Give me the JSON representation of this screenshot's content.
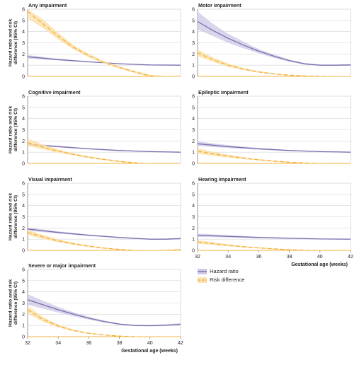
{
  "figure": {
    "y_axis_label_line1": "Hazard ratio and risk",
    "y_axis_label_line2": "difference (95% CI)",
    "x_axis_label": "Gestational age (weeks)"
  },
  "legend": {
    "items": [
      {
        "label": "Hazard ratio",
        "color": "#7a6fb0",
        "band": "#cfcae6",
        "style": "solid"
      },
      {
        "label": "Risk difference",
        "color": "#f2b13a",
        "band": "#fbe3b4",
        "style": "dashed"
      }
    ]
  },
  "colors": {
    "hr_line": "#7a6fb0",
    "hr_band": "#d3cee8",
    "rd_line": "#f2b13a",
    "rd_band": "#fbe2ae",
    "grid": "#d4d4d4",
    "axis": "#8a8a8a"
  },
  "chart_data": [
    {
      "type": "line",
      "title": "Any impairment",
      "xlabel": "",
      "ylabel": "Hazard ratio and risk difference (95% CI)",
      "xlim": [
        32,
        42
      ],
      "ylim": [
        0,
        6
      ],
      "x_ticks": [
        32,
        34,
        36,
        38,
        40,
        42
      ],
      "y_ticks": [
        0,
        1,
        2,
        3,
        4,
        5,
        6
      ],
      "grid": true,
      "x_ticks_shown": false,
      "series": [
        {
          "name": "Hazard ratio",
          "style": "solid",
          "x": [
            32,
            34,
            36,
            38,
            40,
            42
          ],
          "values": [
            1.75,
            1.5,
            1.3,
            1.13,
            1.02,
            1.0
          ],
          "lower": [
            1.6,
            1.42,
            1.25,
            1.1,
            1.0,
            0.98
          ],
          "upper": [
            1.9,
            1.58,
            1.35,
            1.16,
            1.04,
            1.02
          ]
        },
        {
          "name": "Risk difference",
          "style": "dashed",
          "x": [
            32,
            33,
            34,
            35,
            36,
            37,
            38,
            39,
            40,
            41,
            42
          ],
          "values": [
            5.8,
            4.7,
            3.6,
            2.6,
            1.85,
            1.25,
            0.8,
            0.4,
            0.05,
            -0.05,
            -0.05
          ],
          "lower": [
            5.2,
            4.3,
            3.3,
            2.4,
            1.7,
            1.15,
            0.7,
            0.3,
            -0.05,
            -0.15,
            -0.25
          ],
          "upper": [
            6.0,
            5.1,
            3.9,
            2.8,
            2.0,
            1.35,
            0.9,
            0.5,
            0.15,
            0.05,
            0.1
          ]
        }
      ]
    },
    {
      "type": "line",
      "title": "Motor impairment",
      "xlabel": "",
      "ylabel": "",
      "xlim": [
        32,
        42
      ],
      "ylim": [
        0,
        6
      ],
      "x_ticks": [
        32,
        34,
        36,
        38,
        40,
        42
      ],
      "y_ticks": [
        0,
        1,
        2,
        3,
        4,
        5,
        6
      ],
      "grid": true,
      "x_ticks_shown": false,
      "series": [
        {
          "name": "Hazard ratio",
          "style": "solid",
          "x": [
            32,
            33,
            34,
            35,
            36,
            37,
            38,
            39,
            40,
            41,
            42
          ],
          "values": [
            4.9,
            4.1,
            3.4,
            2.8,
            2.25,
            1.8,
            1.4,
            1.12,
            1.0,
            1.0,
            1.02
          ],
          "lower": [
            4.2,
            3.6,
            3.0,
            2.5,
            2.05,
            1.65,
            1.3,
            1.05,
            0.95,
            0.95,
            0.95
          ],
          "upper": [
            5.8,
            4.7,
            3.8,
            3.1,
            2.45,
            1.95,
            1.5,
            1.2,
            1.05,
            1.05,
            1.1
          ]
        },
        {
          "name": "Risk difference",
          "style": "dashed",
          "x": [
            32,
            33,
            34,
            35,
            36,
            37,
            38,
            39,
            40,
            41,
            42
          ],
          "values": [
            2.1,
            1.5,
            1.0,
            0.65,
            0.4,
            0.22,
            0.1,
            0.04,
            0.0,
            -0.02,
            -0.02
          ],
          "lower": [
            1.8,
            1.3,
            0.85,
            0.55,
            0.33,
            0.17,
            0.07,
            0.01,
            -0.04,
            -0.06,
            -0.08
          ],
          "upper": [
            2.4,
            1.7,
            1.15,
            0.75,
            0.47,
            0.27,
            0.13,
            0.07,
            0.04,
            0.02,
            0.04
          ]
        }
      ]
    },
    {
      "type": "line",
      "title": "Cognitive impairment",
      "xlabel": "",
      "ylabel": "Hazard ratio and risk difference (95% CI)",
      "xlim": [
        32,
        42
      ],
      "ylim": [
        0,
        6
      ],
      "x_ticks": [
        32,
        34,
        36,
        38,
        40,
        42
      ],
      "y_ticks": [
        0,
        1,
        2,
        3,
        4,
        5,
        6
      ],
      "grid": true,
      "x_ticks_shown": false,
      "series": [
        {
          "name": "Hazard ratio",
          "style": "solid",
          "x": [
            32,
            34,
            36,
            38,
            40,
            42
          ],
          "values": [
            1.7,
            1.5,
            1.3,
            1.15,
            1.05,
            1.0
          ],
          "lower": [
            1.6,
            1.43,
            1.25,
            1.1,
            1.02,
            0.97
          ],
          "upper": [
            1.8,
            1.57,
            1.35,
            1.2,
            1.08,
            1.03
          ]
        },
        {
          "name": "Risk difference",
          "style": "dashed",
          "x": [
            32,
            33,
            34,
            35,
            36,
            37,
            38,
            39,
            40,
            41,
            42
          ],
          "values": [
            1.85,
            1.45,
            1.1,
            0.8,
            0.55,
            0.35,
            0.18,
            0.05,
            -0.05,
            -0.1,
            -0.1
          ],
          "lower": [
            1.55,
            1.25,
            0.95,
            0.7,
            0.47,
            0.28,
            0.12,
            0.0,
            -0.1,
            -0.17,
            -0.2
          ],
          "upper": [
            2.2,
            1.7,
            1.25,
            0.9,
            0.63,
            0.42,
            0.24,
            0.1,
            0.0,
            -0.03,
            0.0
          ]
        }
      ]
    },
    {
      "type": "line",
      "title": "Epileptic impairment",
      "xlabel": "",
      "ylabel": "",
      "xlim": [
        32,
        42
      ],
      "ylim": [
        0,
        6
      ],
      "x_ticks": [
        32,
        34,
        36,
        38,
        40,
        42
      ],
      "y_ticks": [
        0,
        1,
        2,
        3,
        4,
        5,
        6
      ],
      "grid": true,
      "x_ticks_shown": false,
      "series": [
        {
          "name": "Hazard ratio",
          "style": "solid",
          "x": [
            32,
            34,
            36,
            38,
            40,
            42
          ],
          "values": [
            1.75,
            1.5,
            1.3,
            1.15,
            1.05,
            1.0
          ],
          "lower": [
            1.55,
            1.38,
            1.22,
            1.1,
            1.02,
            0.97
          ],
          "upper": [
            1.95,
            1.62,
            1.38,
            1.2,
            1.08,
            1.03
          ]
        },
        {
          "name": "Risk difference",
          "style": "dashed",
          "x": [
            32,
            33,
            34,
            35,
            36,
            37,
            38,
            39,
            40,
            41,
            42
          ],
          "values": [
            1.1,
            0.85,
            0.65,
            0.47,
            0.32,
            0.2,
            0.1,
            0.03,
            -0.02,
            -0.05,
            -0.05
          ],
          "lower": [
            0.85,
            0.67,
            0.52,
            0.38,
            0.26,
            0.15,
            0.06,
            0.0,
            -0.05,
            -0.09,
            -0.1
          ],
          "upper": [
            1.35,
            1.03,
            0.78,
            0.56,
            0.38,
            0.25,
            0.14,
            0.06,
            0.01,
            -0.01,
            0.0
          ]
        }
      ]
    },
    {
      "type": "line",
      "title": "Visual impairment",
      "xlabel": "",
      "ylabel": "Hazard ratio and risk difference (95% CI)",
      "xlim": [
        32,
        42
      ],
      "ylim": [
        0,
        6
      ],
      "x_ticks": [
        32,
        34,
        36,
        38,
        40,
        42
      ],
      "y_ticks": [
        0,
        1,
        2,
        3,
        4,
        5,
        6
      ],
      "grid": true,
      "x_ticks_shown": false,
      "series": [
        {
          "name": "Hazard ratio",
          "style": "solid",
          "x": [
            32,
            34,
            36,
            38,
            40,
            41,
            42
          ],
          "values": [
            1.9,
            1.6,
            1.35,
            1.15,
            1.0,
            1.0,
            1.05
          ],
          "lower": [
            1.75,
            1.5,
            1.28,
            1.1,
            0.96,
            0.95,
            0.97
          ],
          "upper": [
            2.05,
            1.7,
            1.42,
            1.2,
            1.04,
            1.05,
            1.13
          ]
        },
        {
          "name": "Risk difference",
          "style": "dashed",
          "x": [
            32,
            33,
            34,
            35,
            36,
            37,
            38,
            39,
            40,
            41,
            42
          ],
          "values": [
            1.6,
            1.2,
            0.85,
            0.58,
            0.37,
            0.2,
            0.08,
            0.0,
            -0.03,
            0.0,
            0.05
          ],
          "lower": [
            1.35,
            1.02,
            0.72,
            0.49,
            0.3,
            0.15,
            0.04,
            -0.03,
            -0.07,
            -0.05,
            -0.03
          ],
          "upper": [
            1.85,
            1.38,
            0.98,
            0.67,
            0.44,
            0.25,
            0.12,
            0.03,
            0.01,
            0.05,
            0.13
          ]
        }
      ]
    },
    {
      "type": "line",
      "title": "Hearing impairment",
      "xlabel": "Gestational age (weeks)",
      "ylabel": "",
      "xlim": [
        32,
        42
      ],
      "ylim": [
        0,
        6
      ],
      "x_ticks": [
        32,
        34,
        36,
        38,
        40,
        42
      ],
      "y_ticks": [
        0,
        1,
        2,
        3,
        4,
        5,
        6
      ],
      "grid": true,
      "x_ticks_shown": true,
      "series": [
        {
          "name": "Hazard ratio",
          "style": "solid",
          "x": [
            32,
            34,
            36,
            38,
            40,
            42
          ],
          "values": [
            1.35,
            1.25,
            1.15,
            1.08,
            1.02,
            1.0
          ],
          "lower": [
            1.2,
            1.15,
            1.08,
            1.03,
            0.99,
            0.97
          ],
          "upper": [
            1.5,
            1.35,
            1.22,
            1.13,
            1.05,
            1.03
          ]
        },
        {
          "name": "Risk difference",
          "style": "dashed",
          "x": [
            32,
            33,
            34,
            35,
            36,
            37,
            38,
            39,
            40,
            41,
            42
          ],
          "values": [
            0.75,
            0.6,
            0.45,
            0.33,
            0.22,
            0.13,
            0.06,
            0.01,
            -0.02,
            -0.04,
            -0.05
          ],
          "lower": [
            0.6,
            0.48,
            0.36,
            0.26,
            0.17,
            0.09,
            0.03,
            -0.02,
            -0.05,
            -0.07,
            -0.09
          ],
          "upper": [
            0.9,
            0.72,
            0.54,
            0.4,
            0.27,
            0.17,
            0.09,
            0.04,
            0.01,
            -0.01,
            -0.01
          ]
        }
      ]
    },
    {
      "type": "line",
      "title": "Severe or major impairment",
      "xlabel": "Gestational age (weeks)",
      "ylabel": "Hazard ratio and risk difference (95% CI)",
      "xlim": [
        32,
        42
      ],
      "ylim": [
        0,
        6
      ],
      "x_ticks": [
        32,
        34,
        36,
        38,
        40,
        42
      ],
      "y_ticks": [
        0,
        1,
        2,
        3,
        4,
        5,
        6
      ],
      "grid": true,
      "x_ticks_shown": true,
      "series": [
        {
          "name": "Hazard ratio",
          "style": "solid",
          "x": [
            32,
            33,
            34,
            35,
            36,
            37,
            38,
            39,
            40,
            41,
            42
          ],
          "values": [
            3.3,
            2.85,
            2.4,
            2.0,
            1.65,
            1.35,
            1.12,
            1.0,
            0.98,
            1.02,
            1.1
          ],
          "lower": [
            2.85,
            2.5,
            2.15,
            1.82,
            1.52,
            1.26,
            1.06,
            0.95,
            0.92,
            0.94,
            0.98
          ],
          "upper": [
            3.8,
            3.2,
            2.65,
            2.18,
            1.78,
            1.44,
            1.18,
            1.05,
            1.04,
            1.1,
            1.22
          ]
        },
        {
          "name": "Risk difference",
          "style": "dashed",
          "x": [
            32,
            33,
            34,
            35,
            36,
            37,
            38,
            39,
            40,
            41,
            42
          ],
          "values": [
            2.4,
            1.55,
            0.95,
            0.55,
            0.3,
            0.15,
            0.05,
            0.0,
            -0.02,
            -0.02,
            -0.02
          ],
          "lower": [
            2.05,
            1.33,
            0.82,
            0.47,
            0.25,
            0.11,
            0.02,
            -0.03,
            -0.05,
            -0.05,
            -0.06
          ],
          "upper": [
            2.75,
            1.77,
            1.08,
            0.63,
            0.35,
            0.19,
            0.08,
            0.03,
            0.01,
            0.01,
            0.02
          ]
        }
      ]
    }
  ]
}
